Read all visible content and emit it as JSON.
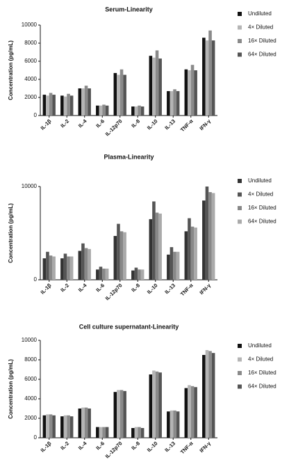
{
  "chart_data": [
    {
      "type": "bar",
      "title": "Serum-Linearity",
      "y_label": "Concentration (pg/mL)",
      "categories": [
        "IL-1β",
        "IL-2",
        "IL-4",
        "IL-6",
        "IL-12p70",
        "IL-8",
        "IL-10",
        "IL-13",
        "TNF-α",
        "IFN-γ"
      ],
      "series": [
        {
          "name": "Undiluted",
          "color": "#111111",
          "values": [
            2300,
            2200,
            3000,
            1100,
            4700,
            1000,
            6600,
            2700,
            5100,
            8600
          ]
        },
        {
          "name": "4× Diluted",
          "color": "#b5b5b5",
          "values": [
            2200,
            2100,
            3000,
            1100,
            4500,
            1000,
            6400,
            2700,
            5000,
            8300
          ]
        },
        {
          "name": "16× Diluted",
          "color": "#8a8a8a",
          "values": [
            2500,
            2400,
            3300,
            1200,
            5100,
            1100,
            7200,
            2900,
            5600,
            9400
          ]
        },
        {
          "name": "64× Diluted",
          "color": "#555555",
          "values": [
            2300,
            2200,
            3000,
            1100,
            4500,
            1000,
            6300,
            2700,
            5000,
            8300
          ]
        }
      ],
      "ylim": [
        0,
        10000
      ],
      "yticks": [
        0,
        2000,
        4000,
        6000,
        8000,
        10000
      ]
    },
    {
      "type": "bar",
      "title": "Plasma-Linearity",
      "y_label": "Concentration (pg/mL)",
      "categories": [
        "IL-1β",
        "IL-2",
        "IL-4",
        "IL-6",
        "IL-12p70",
        "IL-8",
        "IL-10",
        "IL-13",
        "TNF-α",
        "IFN-γ"
      ],
      "series": [
        {
          "name": "Undiluted",
          "color": "#333333",
          "values": [
            2300,
            2300,
            3100,
            1100,
            4700,
            1000,
            6500,
            2700,
            5200,
            8500
          ]
        },
        {
          "name": "4× Diluted",
          "color": "#555555",
          "values": [
            3000,
            2800,
            3900,
            1400,
            6000,
            1300,
            8400,
            3500,
            6600,
            10000
          ]
        },
        {
          "name": "16× Diluted",
          "color": "#888888",
          "values": [
            2600,
            2500,
            3400,
            1200,
            5200,
            1100,
            7200,
            3000,
            5700,
            9400
          ]
        },
        {
          "name": "64× Diluted",
          "color": "#aaaaaa",
          "values": [
            2500,
            2500,
            3300,
            1200,
            5100,
            1100,
            7100,
            3000,
            5600,
            9300
          ]
        }
      ],
      "ylim": [
        0,
        10000
      ],
      "yticks": [
        0,
        10000
      ]
    },
    {
      "type": "bar",
      "title": "Cell culture supernatant-Linearity",
      "y_label": "Concentration (pg/mL)",
      "categories": [
        "IL-1β",
        "IL-2",
        "IL-4",
        "IL-6",
        "IL-12p70",
        "IL-8",
        "IL-10",
        "IL-13",
        "TNF-α",
        "IFN-γ"
      ],
      "series": [
        {
          "name": "Undiluted",
          "color": "#111111",
          "values": [
            2300,
            2200,
            3000,
            1100,
            4700,
            1000,
            6500,
            2700,
            5100,
            8500
          ]
        },
        {
          "name": "4× Diluted",
          "color": "#b5b5b5",
          "values": [
            2400,
            2300,
            3100,
            1100,
            4900,
            1100,
            6900,
            2800,
            5400,
            9000
          ]
        },
        {
          "name": "16× Diluted",
          "color": "#8a8a8a",
          "values": [
            2400,
            2300,
            3100,
            1100,
            4900,
            1100,
            6800,
            2800,
            5300,
            8900
          ]
        },
        {
          "name": "64× Diluted",
          "color": "#555555",
          "values": [
            2300,
            2200,
            3000,
            1100,
            4800,
            1000,
            6700,
            2700,
            5200,
            8700
          ]
        }
      ],
      "ylim": [
        0,
        10000
      ],
      "yticks": [
        0,
        2000,
        4000,
        6000,
        8000,
        10000
      ]
    }
  ]
}
